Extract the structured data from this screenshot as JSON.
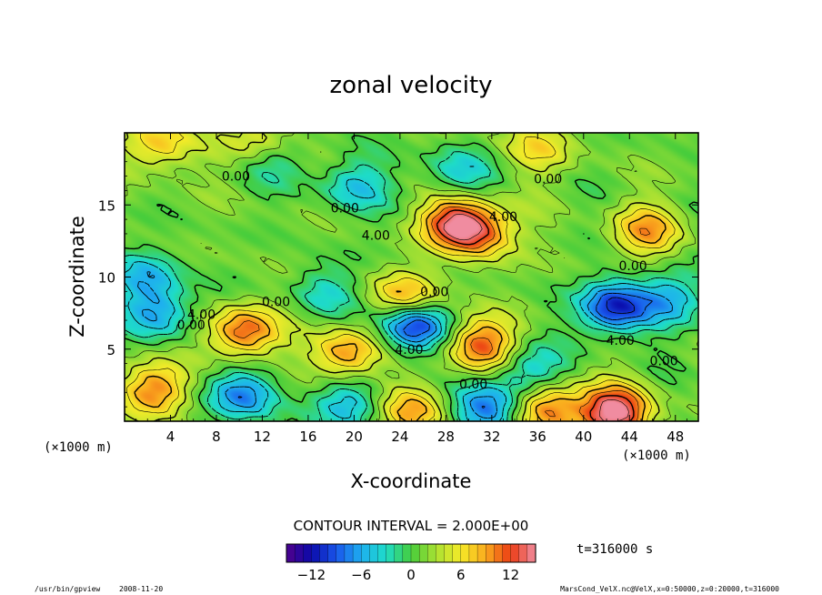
{
  "chart_data": {
    "type": "heatmap",
    "title": "zonal velocity",
    "xlabel": "X-coordinate",
    "ylabel": "Z-coordinate",
    "x_unit_label": "(×1000 m)",
    "z_unit_label": "(×1000 m)",
    "xlim": [
      0,
      50
    ],
    "ylim": [
      0,
      20
    ],
    "x_ticks": [
      4,
      8,
      12,
      16,
      20,
      24,
      28,
      32,
      36,
      40,
      44,
      48
    ],
    "y_ticks": [
      5,
      10,
      15
    ],
    "contour_interval_text": "CONTOUR INTERVAL = 2.000E+00",
    "contour_interval": 2.0,
    "colorbar": {
      "min": -15,
      "max": 15,
      "ticks": [
        -12,
        -6,
        0,
        6,
        12
      ]
    },
    "time_label": "t=316000 s",
    "contour_labels": [
      {
        "text": "0.00",
        "x": 9.7,
        "z": 17.0
      },
      {
        "text": "0.00",
        "x": 19.2,
        "z": 14.8
      },
      {
        "text": "4.00",
        "x": 21.9,
        "z": 12.9
      },
      {
        "text": "4.00",
        "x": 33.0,
        "z": 14.2
      },
      {
        "text": "0.00",
        "x": 36.9,
        "z": 16.8
      },
      {
        "text": "0.00",
        "x": 44.3,
        "z": 10.8
      },
      {
        "text": "0.00",
        "x": 13.2,
        "z": 8.3
      },
      {
        "text": "4.00",
        "x": 6.7,
        "z": 7.4
      },
      {
        "text": "0.00",
        "x": 5.8,
        "z": 6.7
      },
      {
        "text": "0.00",
        "x": 27.0,
        "z": 9.0
      },
      {
        "text": "4.00",
        "x": 24.8,
        "z": 5.0
      },
      {
        "text": "4.00",
        "x": 43.2,
        "z": 5.6
      },
      {
        "text": "0.00",
        "x": 47.0,
        "z": 4.2
      },
      {
        "text": "0.00",
        "x": 30.4,
        "z": 2.6
      }
    ],
    "features": [
      {
        "x": 10.3,
        "z": 6.2,
        "u": 10.5
      },
      {
        "x": 19.3,
        "z": 4.7,
        "u": 9.0
      },
      {
        "x": 31.0,
        "z": 5.3,
        "u": 10.5
      },
      {
        "x": 2.6,
        "z": 2.2,
        "u": 9.0
      },
      {
        "x": 42.7,
        "z": 0.6,
        "u": 15.0
      },
      {
        "x": 36.8,
        "z": 0.9,
        "u": 10.0
      },
      {
        "x": 25.0,
        "z": 0.6,
        "u": 8.0
      },
      {
        "x": 28.8,
        "z": 13.8,
        "u": 11.5
      },
      {
        "x": 31.2,
        "z": 13.1,
        "u": 8.0
      },
      {
        "x": 45.5,
        "z": 13.2,
        "u": 7.5
      },
      {
        "x": 24.7,
        "z": 8.5,
        "u": 9.0
      },
      {
        "x": 3.0,
        "z": 19.2,
        "u": 7.0
      },
      {
        "x": 12.0,
        "z": 19.4,
        "u": 6.0
      },
      {
        "x": 36.0,
        "z": 19.0,
        "u": 5.0
      },
      {
        "x": 25.1,
        "z": 6.7,
        "u": -13.5
      },
      {
        "x": 42.7,
        "z": 7.9,
        "u": -12.0
      },
      {
        "x": 3.1,
        "z": 7.5,
        "u": -7.0
      },
      {
        "x": 10.3,
        "z": 1.8,
        "u": -8.5
      },
      {
        "x": 19.5,
        "z": 1.2,
        "u": -6.5
      },
      {
        "x": 31.5,
        "z": 0.8,
        "u": -9.5
      },
      {
        "x": 35.2,
        "z": 3.4,
        "u": -6.0
      },
      {
        "x": 20.0,
        "z": 16.3,
        "u": -5.5
      },
      {
        "x": 29.0,
        "z": 17.2,
        "u": -5.0
      },
      {
        "x": 13.0,
        "z": 18.3,
        "u": -4.5
      },
      {
        "x": 47.5,
        "z": 8.5,
        "u": -6.5
      },
      {
        "x": 2.0,
        "z": 10.0,
        "u": -6.0
      },
      {
        "x": 17.5,
        "z": 9.0,
        "u": -4.0
      }
    ]
  },
  "footer": {
    "program": "/usr/bin/gpview",
    "date": "2008-11-20",
    "source": "MarsCond_VelX.nc@VelX,x=0:50000,z=0:20000,t=316000"
  }
}
